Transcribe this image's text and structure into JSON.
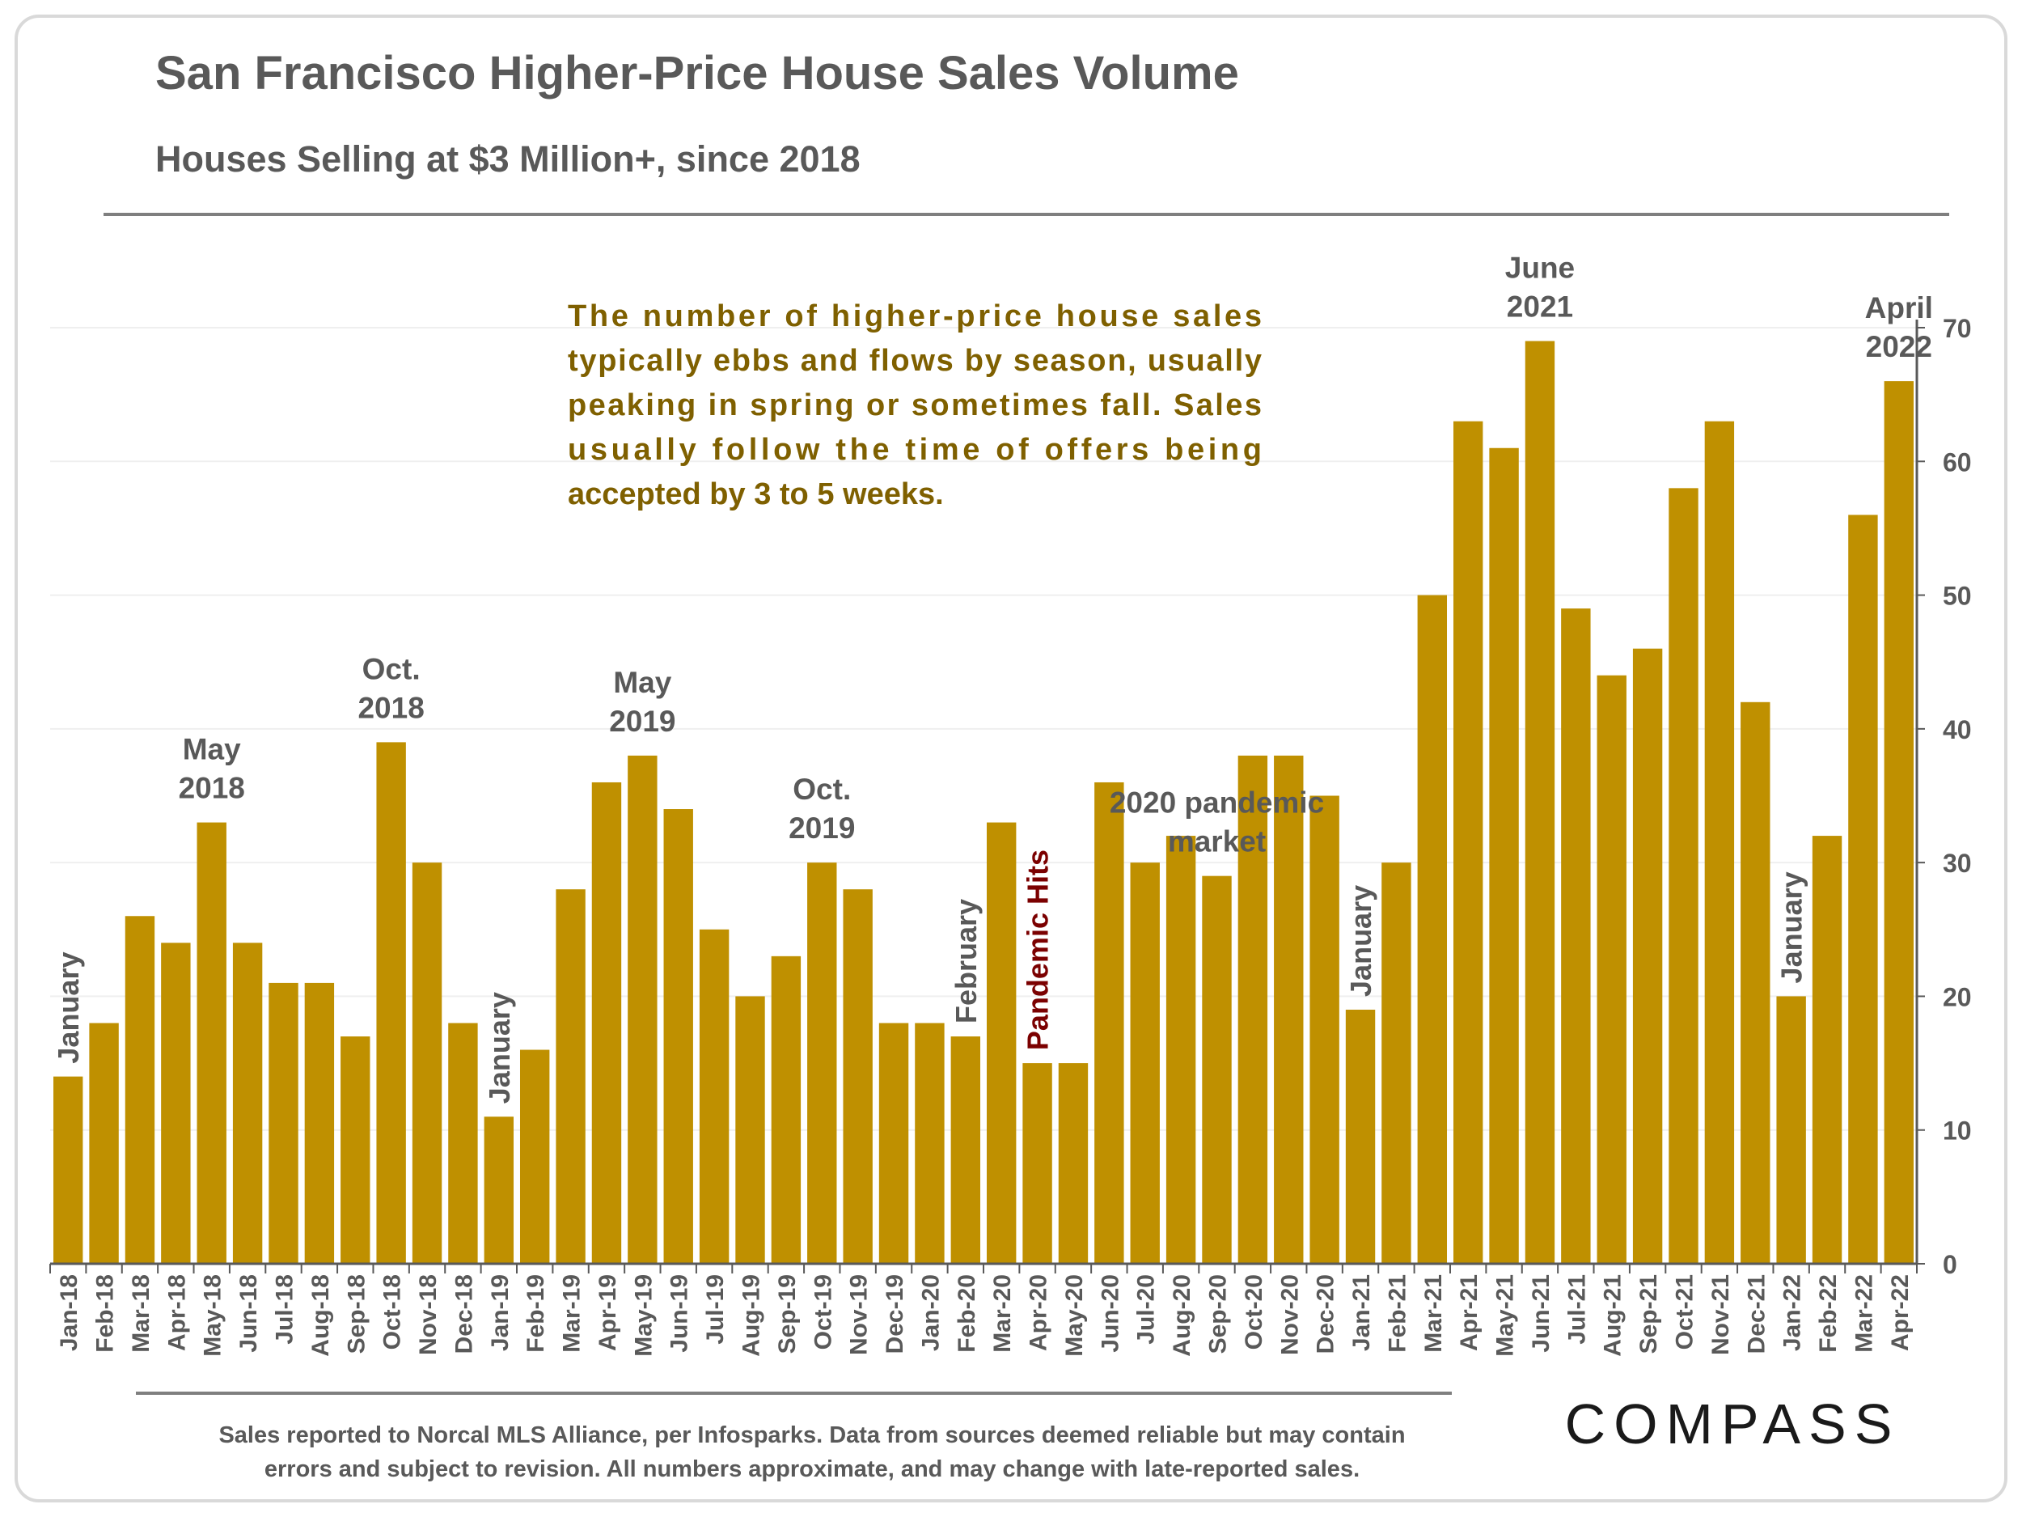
{
  "title": "San Francisco Higher-Price House Sales Volume",
  "subtitle": "Houses Selling at $3 Million+, since 2018",
  "footnote": {
    "line1": "Sales reported to Norcal MLS Alliance, per Infosparks. Data from sources deemed reliable but may contain",
    "line2": "errors and subject to revision.  All numbers approximate, and may change with late-reported sales."
  },
  "logo_text": "COMPASS",
  "colors": {
    "bar": "#BF9000",
    "title": "#595959",
    "annotation_text": "#7F6000",
    "pandemic": "#7B0000",
    "frame": "#D9D9D9"
  },
  "description": {
    "lines": [
      "The number of higher-price house sales",
      "typically ebbs and flows by season, usually",
      "peaking in spring or sometimes fall. Sales",
      "usually follow the time of offers being",
      "accepted by 3 to 5 weeks."
    ]
  },
  "chart_data": {
    "type": "bar",
    "ylim": [
      0,
      70
    ],
    "yticks": [
      0,
      10,
      20,
      30,
      40,
      50,
      60,
      70
    ],
    "y_axis_side": "right",
    "grid": true,
    "categories": [
      "Jan-18",
      "Feb-18",
      "Mar-18",
      "Apr-18",
      "May-18",
      "Jun-18",
      "Jul-18",
      "Aug-18",
      "Sep-18",
      "Oct-18",
      "Nov-18",
      "Dec-18",
      "Jan-19",
      "Feb-19",
      "Mar-19",
      "Apr-19",
      "May-19",
      "Jun-19",
      "Jul-19",
      "Aug-19",
      "Sep-19",
      "Oct-19",
      "Nov-19",
      "Dec-19",
      "Jan-20",
      "Feb-20",
      "Mar-20",
      "Apr-20",
      "May-20",
      "Jun-20",
      "Jul-20",
      "Aug-20",
      "Sep-20",
      "Oct-20",
      "Nov-20",
      "Dec-20",
      "Jan-21",
      "Feb-21",
      "Mar-21",
      "Apr-21",
      "May-21",
      "Jun-21",
      "Jul-21",
      "Aug-21",
      "Sep-21",
      "Oct-21",
      "Nov-21",
      "Dec-21",
      "Jan-22",
      "Feb-22",
      "Mar-22",
      "Apr-22"
    ],
    "values": [
      14,
      18,
      26,
      24,
      33,
      24,
      21,
      21,
      17,
      39,
      30,
      18,
      11,
      16,
      28,
      36,
      38,
      34,
      25,
      20,
      23,
      30,
      28,
      18,
      18,
      17,
      33,
      15,
      15,
      36,
      30,
      32,
      29,
      38,
      38,
      35,
      19,
      30,
      50,
      63,
      61,
      69,
      49,
      44,
      46,
      58,
      63,
      42,
      20,
      32,
      56,
      66
    ],
    "annotations": [
      {
        "text": "January",
        "index": 0,
        "vertical": true
      },
      {
        "text": "May 2018",
        "lines": [
          "May",
          "2018"
        ],
        "index": 4
      },
      {
        "text": "Oct. 2018",
        "lines": [
          "Oct.",
          "2018"
        ],
        "index": 9
      },
      {
        "text": "January",
        "index": 12,
        "vertical": true
      },
      {
        "text": "May 2019",
        "lines": [
          "May",
          "2019"
        ],
        "index": 16
      },
      {
        "text": "Oct. 2019",
        "lines": [
          "Oct.",
          "2019"
        ],
        "index": 21
      },
      {
        "text": "February",
        "index": 25,
        "vertical": true
      },
      {
        "text": "Pandemic Hits",
        "index": 27,
        "vertical": true,
        "highlight": true
      },
      {
        "text": "2020 pandemic market",
        "lines": [
          "2020 pandemic",
          "market"
        ],
        "index": 32
      },
      {
        "text": "January",
        "index": 36,
        "vertical": true
      },
      {
        "text": "June 2021",
        "lines": [
          "June",
          "2021"
        ],
        "index": 41
      },
      {
        "text": "January",
        "index": 48,
        "vertical": true
      },
      {
        "text": "April 2022",
        "lines": [
          "April",
          "2022"
        ],
        "index": 51
      }
    ]
  }
}
